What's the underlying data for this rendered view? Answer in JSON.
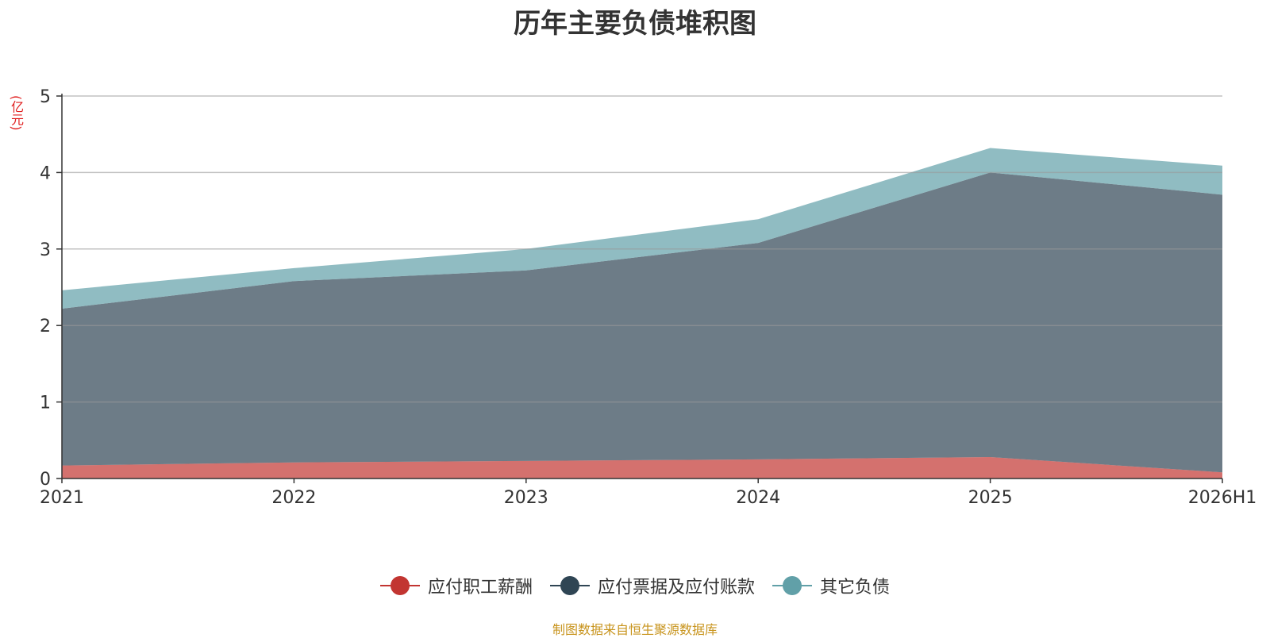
{
  "chart_data": {
    "type": "area",
    "stacked": true,
    "title": "历年主要负债堆积图",
    "unit_label": "(亿元)",
    "categories": [
      "2021",
      "2022",
      "2023",
      "2024",
      "2025",
      "2026H1"
    ],
    "ylim": [
      0,
      5
    ],
    "yticks": [
      "0",
      "1",
      "2",
      "3",
      "4",
      "5"
    ],
    "grid": true,
    "legend_position": "bottom",
    "series": [
      {
        "name": "应付职工薪酬",
        "color": "#c23531",
        "values": [
          0.17,
          0.21,
          0.23,
          0.25,
          0.28,
          0.08
        ]
      },
      {
        "name": "应付票据及应付账款",
        "color": "#2f4554",
        "values": [
          2.05,
          2.37,
          2.49,
          2.83,
          3.72,
          3.63
        ]
      },
      {
        "name": "其它负债",
        "color": "#61a0a8",
        "values": [
          0.24,
          0.17,
          0.28,
          0.31,
          0.32,
          0.38
        ]
      }
    ]
  },
  "source_note": "制图数据来自恒生聚源数据库"
}
